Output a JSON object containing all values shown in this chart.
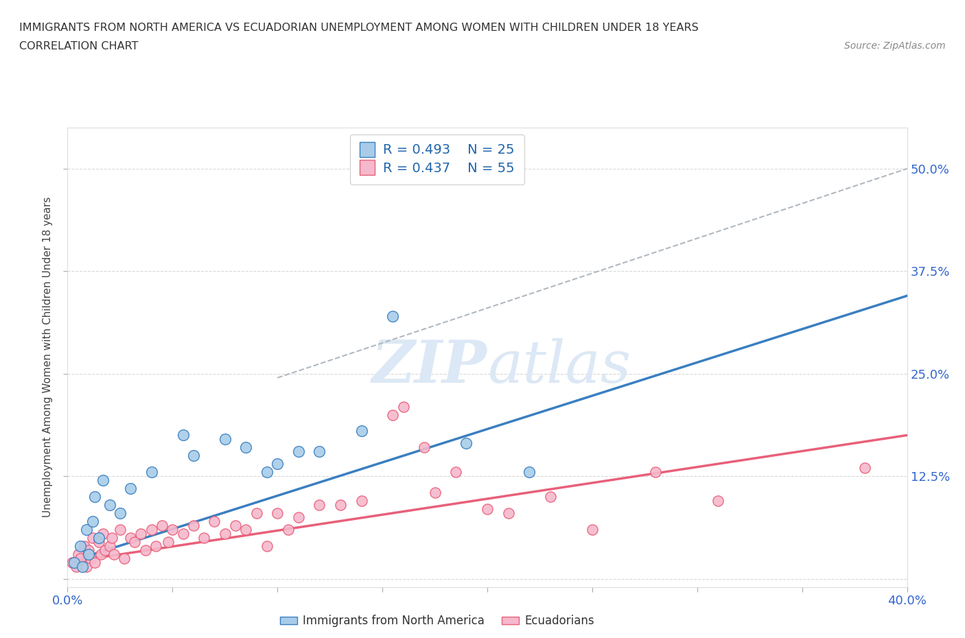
{
  "title": "IMMIGRANTS FROM NORTH AMERICA VS ECUADORIAN UNEMPLOYMENT AMONG WOMEN WITH CHILDREN UNDER 18 YEARS",
  "subtitle": "CORRELATION CHART",
  "source": "Source: ZipAtlas.com",
  "ylabel": "Unemployment Among Women with Children Under 18 years",
  "xlim": [
    0.0,
    0.4
  ],
  "ylim": [
    -0.01,
    0.55
  ],
  "xticks": [
    0.0,
    0.05,
    0.1,
    0.15,
    0.2,
    0.25,
    0.3,
    0.35,
    0.4
  ],
  "ytick_positions": [
    0.0,
    0.125,
    0.25,
    0.375,
    0.5
  ],
  "ytick_labels": [
    "",
    "12.5%",
    "25.0%",
    "37.5%",
    "50.0%"
  ],
  "blue_color": "#a8cce8",
  "pink_color": "#f5b8cc",
  "blue_line_color": "#3a7fc1",
  "pink_line_color": "#e8607a",
  "gray_dashed_color": "#b0b8c0",
  "watermark_color": "#dce8f5",
  "legend_R1": "R = 0.493",
  "legend_N1": "N = 25",
  "legend_R2": "R = 0.437",
  "legend_N2": "N = 55",
  "blue_scatter_x": [
    0.003,
    0.006,
    0.007,
    0.009,
    0.01,
    0.012,
    0.013,
    0.015,
    0.017,
    0.02,
    0.025,
    0.03,
    0.04,
    0.055,
    0.06,
    0.075,
    0.085,
    0.095,
    0.1,
    0.11,
    0.12,
    0.14,
    0.155,
    0.19,
    0.22
  ],
  "blue_scatter_y": [
    0.02,
    0.04,
    0.015,
    0.06,
    0.03,
    0.07,
    0.1,
    0.05,
    0.12,
    0.09,
    0.08,
    0.11,
    0.13,
    0.175,
    0.15,
    0.17,
    0.16,
    0.13,
    0.14,
    0.155,
    0.155,
    0.18,
    0.32,
    0.165,
    0.13
  ],
  "pink_scatter_x": [
    0.002,
    0.004,
    0.005,
    0.006,
    0.008,
    0.009,
    0.01,
    0.011,
    0.012,
    0.013,
    0.015,
    0.016,
    0.017,
    0.018,
    0.02,
    0.021,
    0.022,
    0.025,
    0.027,
    0.03,
    0.032,
    0.035,
    0.037,
    0.04,
    0.042,
    0.045,
    0.048,
    0.05,
    0.055,
    0.06,
    0.065,
    0.07,
    0.075,
    0.08,
    0.085,
    0.09,
    0.095,
    0.1,
    0.105,
    0.11,
    0.12,
    0.13,
    0.14,
    0.155,
    0.16,
    0.17,
    0.175,
    0.185,
    0.2,
    0.21,
    0.23,
    0.25,
    0.28,
    0.31,
    0.38
  ],
  "pink_scatter_y": [
    0.02,
    0.015,
    0.03,
    0.025,
    0.04,
    0.015,
    0.035,
    0.025,
    0.05,
    0.02,
    0.045,
    0.03,
    0.055,
    0.035,
    0.04,
    0.05,
    0.03,
    0.06,
    0.025,
    0.05,
    0.045,
    0.055,
    0.035,
    0.06,
    0.04,
    0.065,
    0.045,
    0.06,
    0.055,
    0.065,
    0.05,
    0.07,
    0.055,
    0.065,
    0.06,
    0.08,
    0.04,
    0.08,
    0.06,
    0.075,
    0.09,
    0.09,
    0.095,
    0.2,
    0.21,
    0.16,
    0.105,
    0.13,
    0.085,
    0.08,
    0.1,
    0.06,
    0.13,
    0.095,
    0.135
  ],
  "blue_trend_x0": 0.0,
  "blue_trend_x1": 0.4,
  "blue_trend_y0": 0.02,
  "blue_trend_y1": 0.345,
  "pink_trend_x0": 0.0,
  "pink_trend_x1": 0.4,
  "pink_trend_y0": 0.02,
  "pink_trend_y1": 0.175,
  "gray_trend_x0": 0.1,
  "gray_trend_x1": 0.4,
  "gray_trend_y0": 0.245,
  "gray_trend_y1": 0.5,
  "bg_color": "#ffffff",
  "grid_color": "#d8d8d8",
  "tick_color": "#3366cc"
}
